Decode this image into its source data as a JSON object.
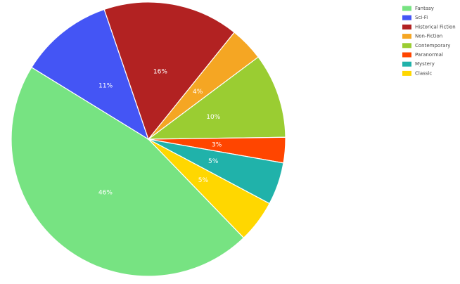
{
  "chart_data": {
    "type": "pie",
    "categories": [
      "Fantasy",
      "Sci-Fi",
      "Historical Fiction",
      "Non-Fiction",
      "Contemporary",
      "Paranormal",
      "Mystery",
      "Classic"
    ],
    "values": [
      46,
      11,
      16,
      4,
      10,
      3,
      5,
      5
    ],
    "value_labels": [
      "46%",
      "11%",
      "16%",
      "4%",
      "10%",
      "3%",
      "5%",
      "5%"
    ],
    "colors": [
      "#77e382",
      "#4455f5",
      "#b22222",
      "#f5a623",
      "#9acd32",
      "#ff4500",
      "#20b2aa",
      "#ffd700"
    ],
    "legend": "top-right"
  }
}
